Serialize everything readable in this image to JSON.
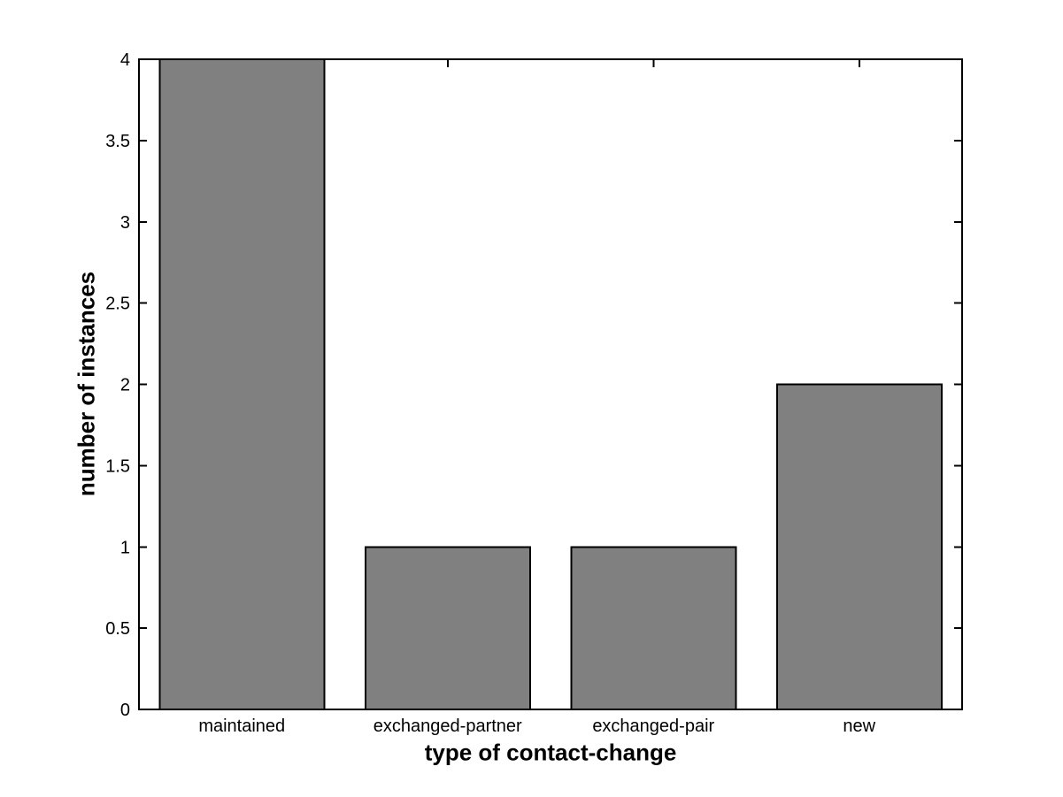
{
  "chart_data": {
    "type": "bar",
    "categories": [
      "maintained",
      "exchanged-partner",
      "exchanged-pair",
      "new"
    ],
    "values": [
      4,
      1,
      1,
      2
    ],
    "title": "",
    "xlabel": "type of contact-change",
    "ylabel": "number of instances",
    "ylim": [
      0,
      4
    ],
    "yticks": [
      0,
      0.5,
      1,
      1.5,
      2,
      2.5,
      3,
      3.5,
      4
    ],
    "ytick_labels": [
      "0",
      "0.5",
      "1",
      "1.5",
      "2",
      "2.5",
      "3",
      "3.5",
      "4"
    ],
    "bar_width_fraction": 0.8,
    "bar_fill": "#808080",
    "bar_edge": "#000000",
    "axis_color": "#000000",
    "text_color": "#000000",
    "background": "#ffffff",
    "grid": false,
    "box": true,
    "legend": "none"
  }
}
